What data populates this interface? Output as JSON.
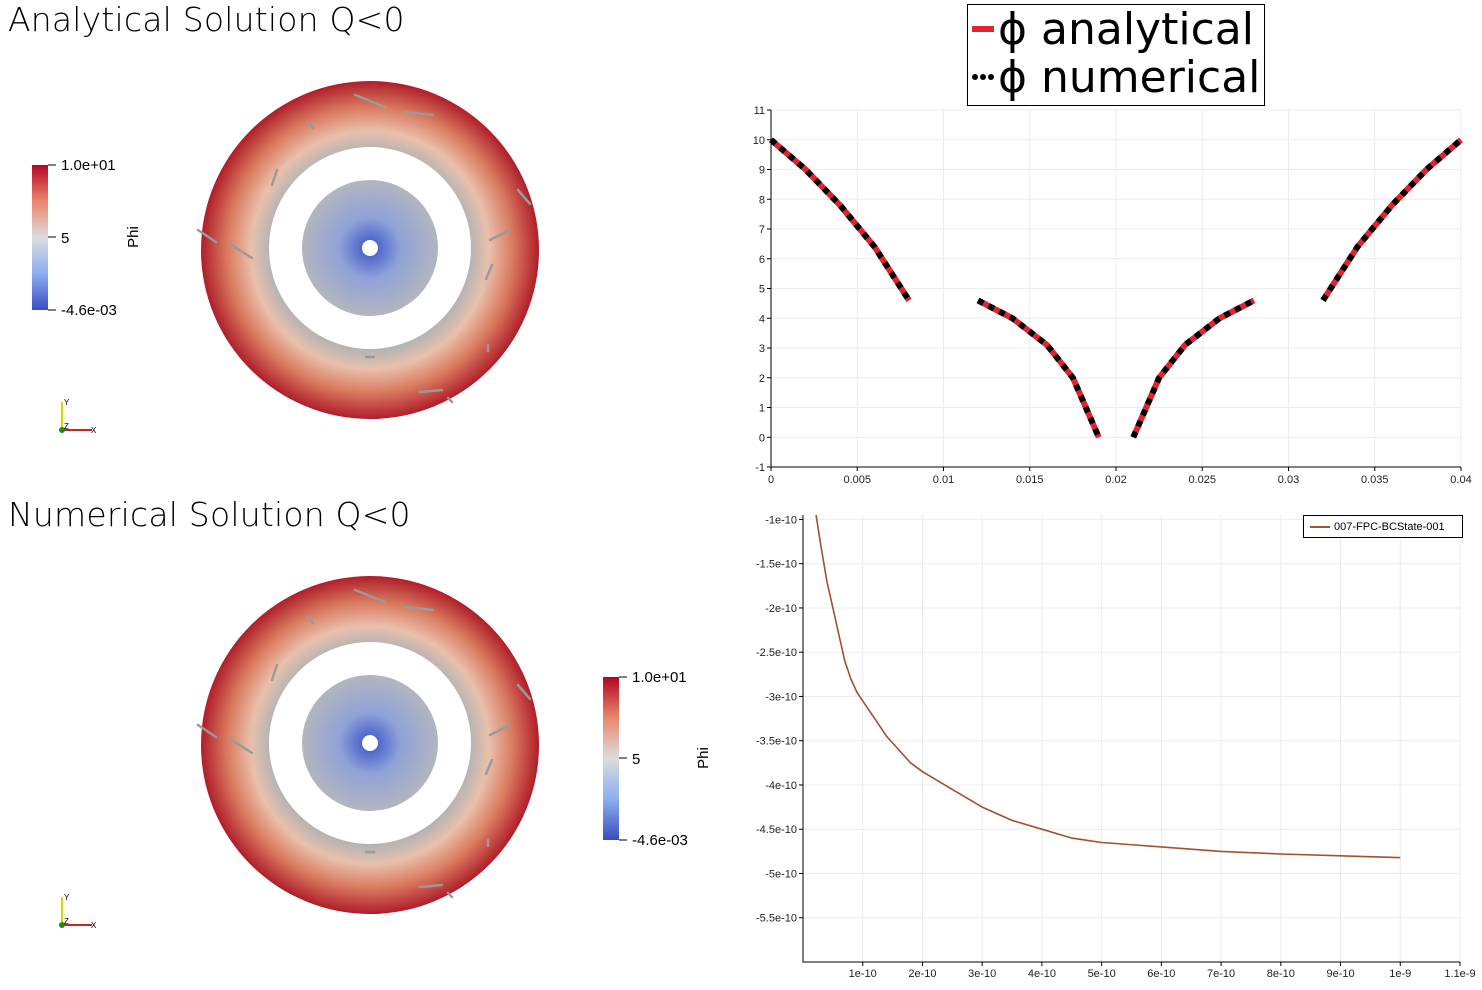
{
  "views": {
    "top_title": "Analytical Solution Q<0",
    "bottom_title": "Numerical Solution Q<0",
    "colorbar": {
      "name": "Phi",
      "max_label": "1.0e+01",
      "mid_label": "5",
      "min_label": "-4.6e-03",
      "colors": [
        "#3b4cc0",
        "#dddddd",
        "#b40426"
      ]
    },
    "axes_triad": {
      "x": "X",
      "y": "Y",
      "z": "Z"
    }
  },
  "chart_data": [
    {
      "type": "line",
      "legend": [
        "ϕ analytical",
        "ϕ numerical"
      ],
      "legend_placement": "top-center",
      "xlim": [
        0,
        0.04
      ],
      "ylim": [
        -1,
        11
      ],
      "x_ticks": [
        "0",
        "0.005",
        "0.01",
        "0.015",
        "0.02",
        "0.025",
        "0.03",
        "0.035",
        "0.04"
      ],
      "y_ticks": [
        "-1",
        "0",
        "1",
        "2",
        "3",
        "4",
        "5",
        "6",
        "7",
        "8",
        "9",
        "10",
        "11"
      ],
      "grid": true,
      "series": [
        {
          "name": "ϕ analytical",
          "color": "#e0242e",
          "style": "solid",
          "segments": [
            [
              [
                0,
                10
              ],
              [
                0.002,
                9.0
              ],
              [
                0.004,
                7.8
              ],
              [
                0.006,
                6.4
              ],
              [
                0.008,
                4.6
              ]
            ],
            [
              [
                0.012,
                4.6
              ],
              [
                0.014,
                4.0
              ],
              [
                0.016,
                3.1
              ],
              [
                0.0175,
                2.0
              ],
              [
                0.019,
                0.0
              ]
            ],
            [
              [
                0.021,
                0.0
              ],
              [
                0.0225,
                2.0
              ],
              [
                0.024,
                3.1
              ],
              [
                0.026,
                4.0
              ],
              [
                0.028,
                4.6
              ]
            ],
            [
              [
                0.032,
                4.6
              ],
              [
                0.034,
                6.4
              ],
              [
                0.036,
                7.8
              ],
              [
                0.038,
                9.0
              ],
              [
                0.04,
                10
              ]
            ]
          ]
        },
        {
          "name": "ϕ numerical",
          "color": "#000000",
          "style": "dotted",
          "segments": [
            [
              [
                0,
                10
              ],
              [
                0.002,
                9.0
              ],
              [
                0.004,
                7.8
              ],
              [
                0.006,
                6.4
              ],
              [
                0.008,
                4.6
              ]
            ],
            [
              [
                0.012,
                4.6
              ],
              [
                0.014,
                4.0
              ],
              [
                0.016,
                3.1
              ],
              [
                0.0175,
                2.0
              ],
              [
                0.019,
                0.0
              ]
            ],
            [
              [
                0.021,
                0.0
              ],
              [
                0.0225,
                2.0
              ],
              [
                0.024,
                3.1
              ],
              [
                0.026,
                4.0
              ],
              [
                0.028,
                4.6
              ]
            ],
            [
              [
                0.032,
                4.6
              ],
              [
                0.034,
                6.4
              ],
              [
                0.036,
                7.8
              ],
              [
                0.038,
                9.0
              ],
              [
                0.04,
                10
              ]
            ]
          ]
        }
      ]
    },
    {
      "type": "line",
      "legend": [
        "007-FPC-BCState-001"
      ],
      "legend_placement": "top-right",
      "xlim": [
        0,
        1.1e-09
      ],
      "ylim": [
        -6e-10,
        -9.5e-11
      ],
      "x_ticks": [
        "1e-10",
        "2e-10",
        "3e-10",
        "4e-10",
        "5e-10",
        "6e-10",
        "7e-10",
        "8e-10",
        "9e-10",
        "1e-9",
        "1.1e-9"
      ],
      "y_ticks": [
        "-1e-10",
        "-1.5e-10",
        "-2e-10",
        "-2.5e-10",
        "-3e-10",
        "-3.5e-10",
        "-4e-10",
        "-4.5e-10",
        "-5e-10",
        "-5.5e-10"
      ],
      "grid": true,
      "series": [
        {
          "name": "007-FPC-BCState-001",
          "color": "#a0522d",
          "x": [
            2.2e-11,
            3e-11,
            4e-11,
            5e-11,
            6e-11,
            7e-11,
            8e-11,
            9e-11,
            1e-10,
            1.2e-10,
            1.4e-10,
            1.6e-10,
            1.8e-10,
            2e-10,
            2.5e-10,
            3e-10,
            3.5e-10,
            4e-10,
            4.5e-10,
            5e-10,
            6e-10,
            7e-10,
            8e-10,
            9e-10,
            1e-09
          ],
          "y": [
            -9.5e-11,
            -1.3e-10,
            -1.7e-10,
            -2e-10,
            -2.3e-10,
            -2.6e-10,
            -2.8e-10,
            -2.95e-10,
            -3.05e-10,
            -3.25e-10,
            -3.45e-10,
            -3.6e-10,
            -3.75e-10,
            -3.85e-10,
            -4.05e-10,
            -4.25e-10,
            -4.4e-10,
            -4.5e-10,
            -4.6e-10,
            -4.65e-10,
            -4.7e-10,
            -4.75e-10,
            -4.78e-10,
            -4.8e-10,
            -4.82e-10
          ]
        }
      ]
    }
  ]
}
